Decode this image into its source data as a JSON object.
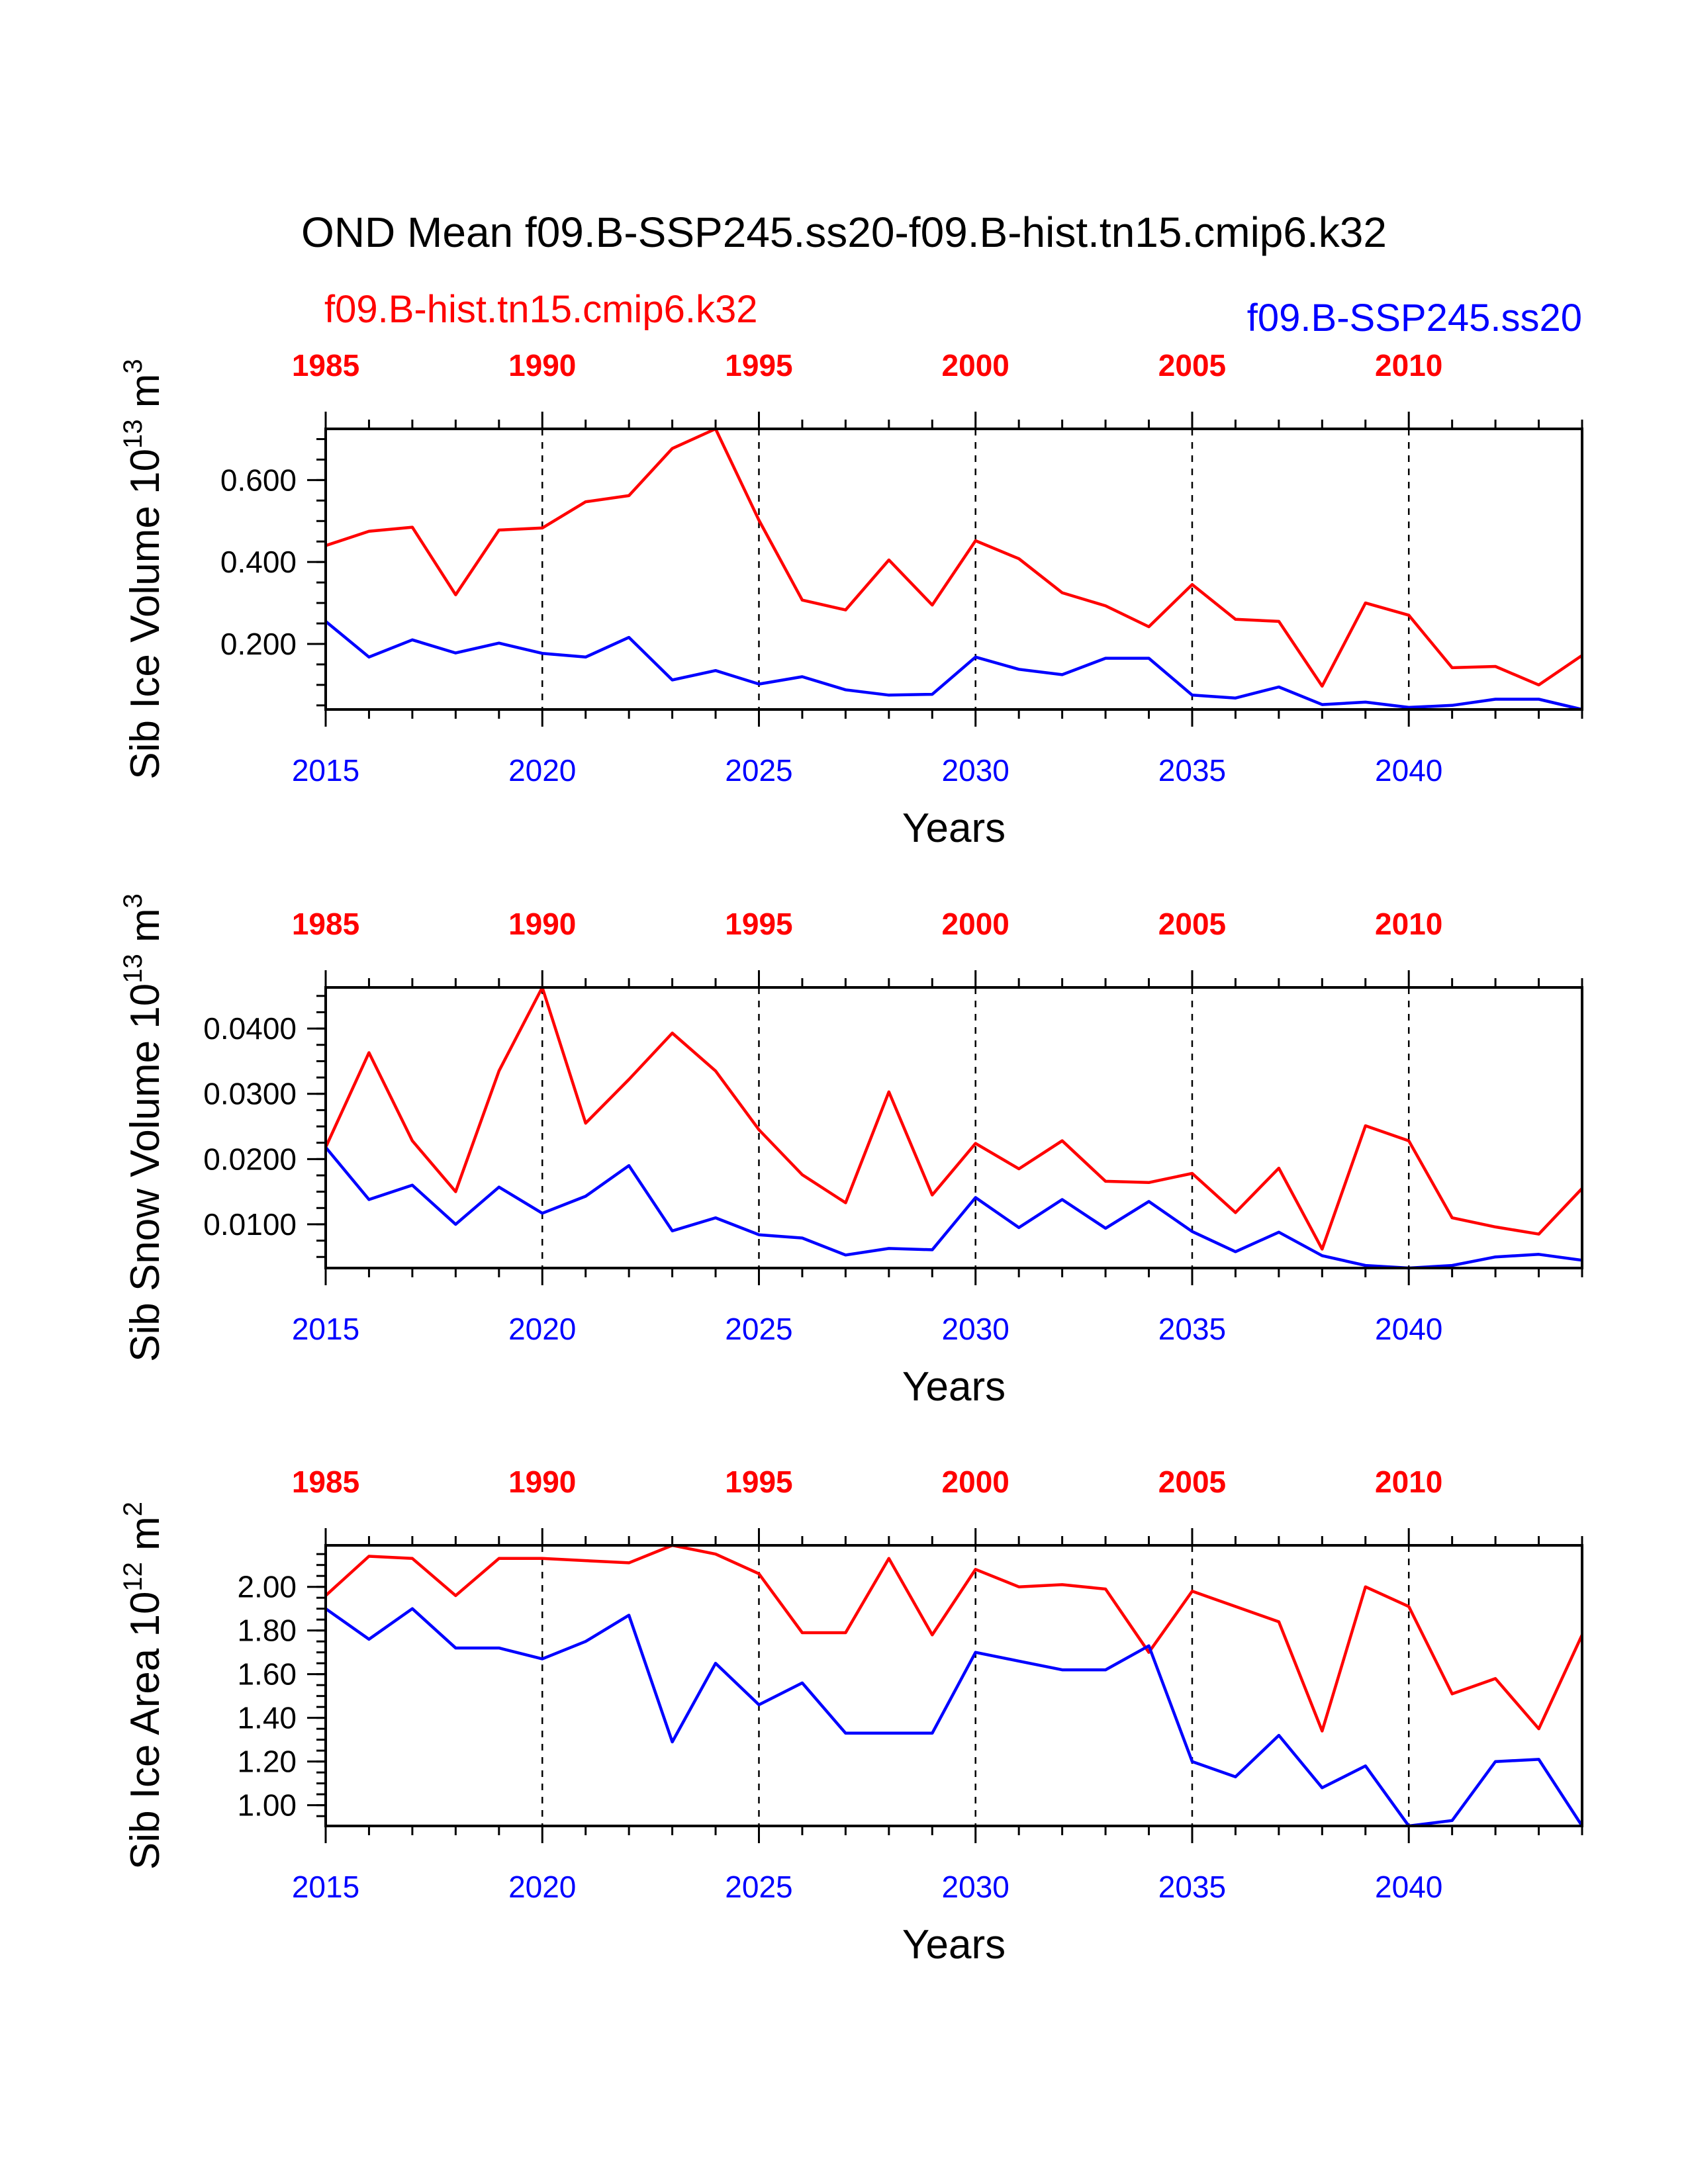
{
  "title": "OND Mean f09.B-SSP245.ss20-f09.B-hist.tn15.cmip6.k32",
  "legend": {
    "hist": {
      "label": "f09.B-hist.tn15.cmip6.k32",
      "color": "#ff0000"
    },
    "ssp": {
      "label": "f09.B-SSP245.ss20",
      "color": "#0000ff"
    }
  },
  "chart_data": [
    {
      "type": "line",
      "ylabel": "Sib Ice Volume 10",
      "ylabel_exp": "13",
      "ylabel_unit": " m",
      "ylabel_unit_exp": "3",
      "xlabel": "Years",
      "xlim": [
        2015,
        2044
      ],
      "ylim": [
        0.04,
        0.725
      ],
      "yticks": [
        0.2,
        0.4,
        0.6
      ],
      "ytick_labels": [
        "0.200",
        "0.400",
        "0.600"
      ],
      "yminor": 0.05,
      "x_bottom_ticks": [
        "2015",
        "2020",
        "2025",
        "2030",
        "2035",
        "2040"
      ],
      "x_top_ticks": [
        "1985",
        "1990",
        "1995",
        "2000",
        "2005",
        "2010"
      ],
      "series": [
        {
          "name": "f09.B-hist.tn15.cmip6.k32",
          "color": "#ff0000",
          "values": [
            0.44,
            0.475,
            0.485,
            0.32,
            0.478,
            0.483,
            0.547,
            0.562,
            0.677,
            0.725,
            0.502,
            0.307,
            0.283,
            0.405,
            0.295,
            0.452,
            0.408,
            0.325,
            0.293,
            0.242,
            0.345,
            0.26,
            0.255,
            0.097,
            0.3,
            0.27,
            0.142,
            0.145,
            0.1,
            0.172
          ]
        },
        {
          "name": "f09.B-SSP245.ss20",
          "color": "#0000ff",
          "values": [
            0.255,
            0.168,
            0.21,
            0.178,
            0.202,
            0.177,
            0.168,
            0.216,
            0.112,
            0.135,
            0.102,
            0.12,
            0.088,
            0.075,
            0.077,
            0.168,
            0.138,
            0.125,
            0.165,
            0.165,
            0.075,
            0.068,
            0.095,
            0.052,
            0.058,
            0.045,
            0.05,
            0.065,
            0.065,
            0.04
          ]
        }
      ]
    },
    {
      "type": "line",
      "ylabel": "Sib Snow Volume 10",
      "ylabel_exp": "13",
      "ylabel_unit": " m",
      "ylabel_unit_exp": "3",
      "xlabel": "Years",
      "xlim": [
        2015,
        2044
      ],
      "ylim": [
        0.0033,
        0.0463
      ],
      "yticks": [
        0.01,
        0.02,
        0.03,
        0.04
      ],
      "ytick_labels": [
        "0.0100",
        "0.0200",
        "0.0300",
        "0.0400"
      ],
      "yminor": 0.0025,
      "x_bottom_ticks": [
        "2015",
        "2020",
        "2025",
        "2030",
        "2035",
        "2040"
      ],
      "x_top_ticks": [
        "1985",
        "1990",
        "1995",
        "2000",
        "2005",
        "2010"
      ],
      "series": [
        {
          "name": "f09.B-hist.tn15.cmip6.k32",
          "color": "#ff0000",
          "values": [
            0.0218,
            0.0363,
            0.0228,
            0.015,
            0.0335,
            0.0463,
            0.0255,
            0.0322,
            0.0393,
            0.0335,
            0.0245,
            0.0176,
            0.0133,
            0.0303,
            0.0145,
            0.0224,
            0.0185,
            0.0228,
            0.0166,
            0.0164,
            0.0178,
            0.0118,
            0.0186,
            0.0062,
            0.0251,
            0.0228,
            0.011,
            0.0096,
            0.0085,
            0.0155
          ]
        },
        {
          "name": "f09.B-SSP245.ss20",
          "color": "#0000ff",
          "values": [
            0.0218,
            0.0138,
            0.016,
            0.01,
            0.0157,
            0.0117,
            0.0143,
            0.019,
            0.009,
            0.011,
            0.0084,
            0.0079,
            0.0053,
            0.0063,
            0.0061,
            0.0141,
            0.0095,
            0.0138,
            0.0094,
            0.0135,
            0.0089,
            0.0058,
            0.0088,
            0.0052,
            0.0037,
            0.0033,
            0.0037,
            0.005,
            0.0054,
            0.0045
          ]
        }
      ]
    },
    {
      "type": "line",
      "ylabel": "Sib Ice Area 10",
      "ylabel_exp": "12",
      "ylabel_unit": " m",
      "ylabel_unit_exp": "2",
      "xlabel": "Years",
      "xlim": [
        2015,
        2044
      ],
      "ylim": [
        0.905,
        2.19
      ],
      "yticks": [
        1.0,
        1.2,
        1.4,
        1.6,
        1.8,
        2.0
      ],
      "ytick_labels": [
        "1.00",
        "1.20",
        "1.40",
        "1.60",
        "1.80",
        "2.00"
      ],
      "yminor": 0.05,
      "x_bottom_ticks": [
        "2015",
        "2020",
        "2025",
        "2030",
        "2035",
        "2040"
      ],
      "x_top_ticks": [
        "1985",
        "1990",
        "1995",
        "2000",
        "2005",
        "2010"
      ],
      "series": [
        {
          "name": "f09.B-hist.tn15.cmip6.k32",
          "color": "#ff0000",
          "values": [
            1.96,
            2.14,
            2.13,
            1.96,
            2.13,
            2.13,
            2.12,
            2.11,
            2.19,
            2.15,
            2.06,
            1.79,
            1.79,
            2.13,
            1.78,
            2.08,
            2.0,
            2.01,
            1.99,
            1.7,
            1.98,
            1.91,
            1.84,
            1.34,
            2.0,
            1.91,
            1.51,
            1.58,
            1.35,
            1.78
          ]
        },
        {
          "name": "f09.B-SSP245.ss20",
          "color": "#0000ff",
          "values": [
            1.9,
            1.76,
            1.9,
            1.72,
            1.72,
            1.67,
            1.75,
            1.87,
            1.29,
            1.65,
            1.46,
            1.56,
            1.33,
            1.33,
            1.33,
            1.7,
            1.66,
            1.62,
            1.62,
            1.73,
            1.2,
            1.13,
            1.32,
            1.08,
            1.18,
            0.905,
            0.93,
            1.2,
            1.21,
            0.905
          ]
        }
      ]
    }
  ]
}
